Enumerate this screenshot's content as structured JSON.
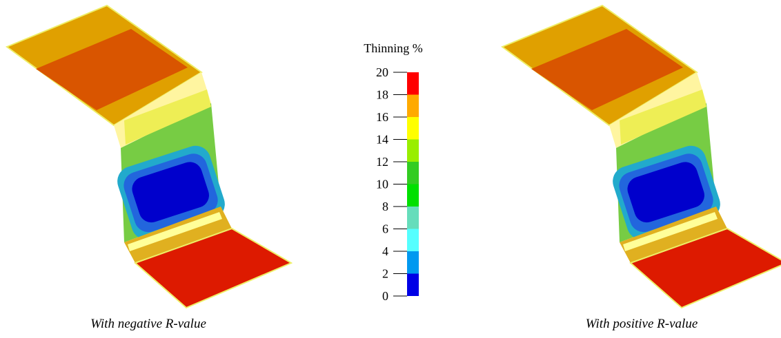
{
  "colorbar": {
    "title": "Thinning %",
    "ticks": [
      0,
      2,
      4,
      6,
      8,
      10,
      12,
      14,
      16,
      18,
      20
    ],
    "colors": [
      "#0000e6",
      "#0099f0",
      "#55ffff",
      "#66ddbb",
      "#00e000",
      "#33cc22",
      "#99ee00",
      "#ffff00",
      "#ffaa00",
      "#ff0000"
    ]
  },
  "captions": [
    "With negative R-value",
    "With positive R-value"
  ]
}
